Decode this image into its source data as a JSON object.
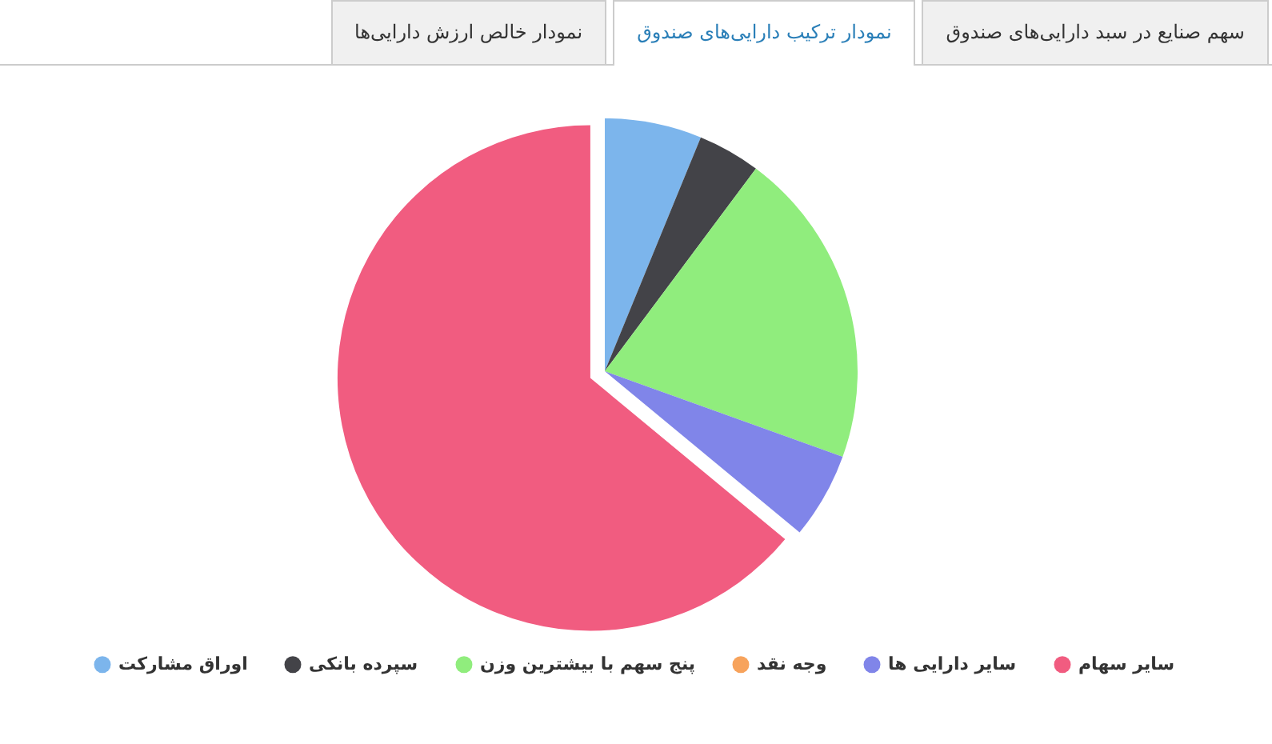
{
  "chart_data": {
    "type": "pie",
    "annotations": [
      "سهم صنایع در سبد دارایی‌های صندوق",
      "نمودار ترکیب دارایی‌های صندوق",
      "نمودار خالص ارزش دارایی‌ها"
    ],
    "categories": [
      "اوراق مشارکت",
      "سپرده بانکی",
      "پنج سهم با بیشترین وزن",
      "وجه نقد",
      "سایر دارایی ها",
      "سایر سهام"
    ],
    "values": [
      6.2,
      4,
      20.3,
      0,
      5.5,
      64
    ],
    "colors": [
      "#7cb5ec",
      "#434348",
      "#90ed7d",
      "#f7a35c",
      "#8085e9",
      "#f15c80"
    ],
    "legend": "bottom"
  }
}
